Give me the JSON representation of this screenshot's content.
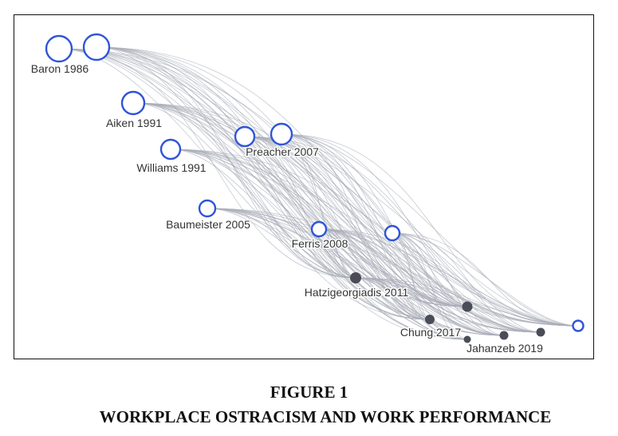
{
  "figure": {
    "number": "FIGURE 1",
    "title": "WORKPLACE OSTRACISM AND WORK PERFORMANCE"
  },
  "colors": {
    "cited_node": "#2f54d8",
    "citing_node": "#4a4d57",
    "edge": "#a9adb8",
    "label": "#333333"
  },
  "nodes": [
    {
      "id": "n1",
      "type": "cited",
      "label": ""
    },
    {
      "id": "n2",
      "type": "cited",
      "label": "Baron 1986"
    },
    {
      "id": "n3",
      "type": "cited",
      "label": "Aiken 1991"
    },
    {
      "id": "n4",
      "type": "cited",
      "label": "Williams 1991"
    },
    {
      "id": "n5",
      "type": "cited",
      "label": ""
    },
    {
      "id": "n6",
      "type": "cited",
      "label": "Preacher 2007"
    },
    {
      "id": "n7",
      "type": "cited",
      "label": "Baumeister 2005"
    },
    {
      "id": "n8",
      "type": "cited",
      "label": "Ferris 2008"
    },
    {
      "id": "n9",
      "type": "cited",
      "label": ""
    },
    {
      "id": "n10",
      "type": "citing",
      "label": "Hatzigeorgiadis 2011"
    },
    {
      "id": "n11",
      "type": "citing",
      "label": ""
    },
    {
      "id": "n12",
      "type": "citing",
      "label": "Chung 2017"
    },
    {
      "id": "n13",
      "type": "citing",
      "label": ""
    },
    {
      "id": "n14",
      "type": "citing",
      "label": "Jahanzeb 2019"
    },
    {
      "id": "n15",
      "type": "citing",
      "label": ""
    },
    {
      "id": "n16",
      "type": "cited",
      "label": ""
    }
  ]
}
